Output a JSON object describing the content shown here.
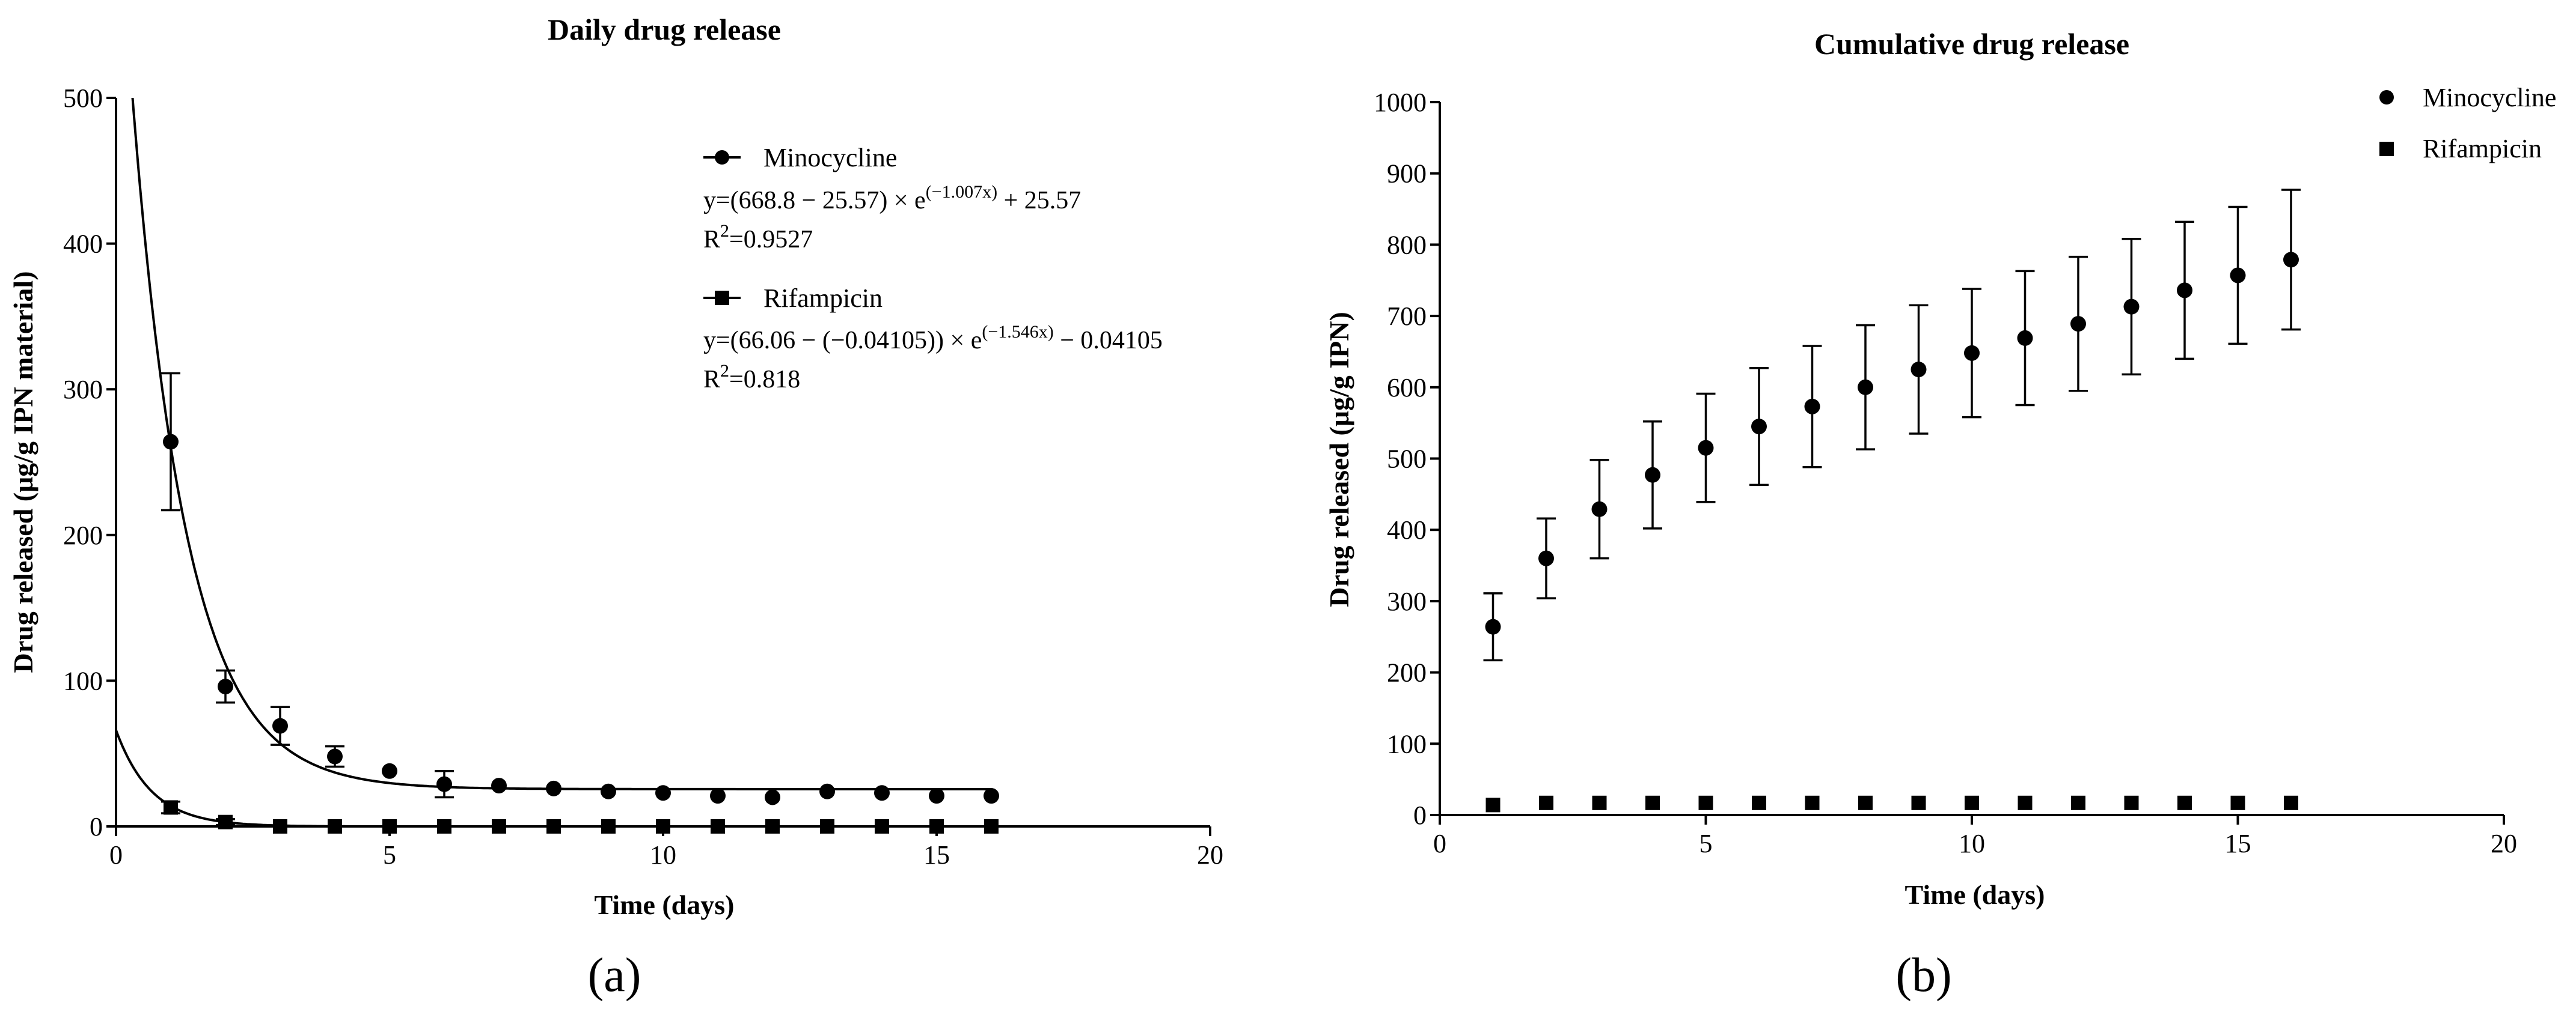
{
  "chart_data": [
    {
      "type": "scatter",
      "panel_label": "(a)",
      "title": "Daily drug release",
      "xlabel": "Time (days)",
      "ylabel": "Drug released (μg/g IPN material)",
      "xlim": [
        0,
        20
      ],
      "ylim": [
        0,
        500
      ],
      "xticks": [
        "0",
        "5",
        "10",
        "15",
        "20"
      ],
      "yticks": [
        "0",
        "100",
        "200",
        "300",
        "400",
        "500"
      ],
      "legend_position": "top-right",
      "series": [
        {
          "name": "Minocycline",
          "marker": "circle",
          "x": [
            1,
            2,
            3,
            4,
            5,
            6,
            7,
            8,
            9,
            10,
            11,
            12,
            13,
            14,
            15,
            16
          ],
          "y": [
            264,
            96,
            69,
            48,
            38,
            29,
            28,
            26,
            24,
            23,
            21,
            20,
            24,
            23,
            21,
            21
          ],
          "err": [
            47,
            11,
            13,
            7,
            0,
            9,
            0,
            0,
            0,
            0,
            0,
            0,
            0,
            0,
            0,
            0
          ],
          "fit": {
            "a": 668.8,
            "c": 25.57,
            "k": 1.007
          },
          "eq_main": "y=(668.8 − 25.57) × e",
          "eq_exp": "(−1.007x)",
          "eq_tail": " + 25.57",
          "r2_prefix": "R",
          "r2_sup": "2",
          "r2_value": "=0.9527"
        },
        {
          "name": "Rifampicin",
          "marker": "square",
          "x": [
            1,
            2,
            3,
            4,
            5,
            6,
            7,
            8,
            9,
            10,
            11,
            12,
            13,
            14,
            15,
            16
          ],
          "y": [
            13,
            3,
            0,
            0,
            0,
            0,
            0,
            0,
            0,
            0,
            0,
            0,
            0,
            0,
            0,
            0
          ],
          "err": [
            4,
            2,
            0,
            0,
            0,
            0,
            0,
            0,
            0,
            0,
            0,
            0,
            0,
            0,
            0,
            0
          ],
          "fit": {
            "a": 66.06,
            "c": -0.04105,
            "k": 1.546
          },
          "eq_main": "y=(66.06 − (−0.04105)) × e",
          "eq_exp": "(−1.546x)",
          "eq_tail": " − 0.04105",
          "r2_prefix": "R",
          "r2_sup": "2",
          "r2_value": "=0.818"
        }
      ]
    },
    {
      "type": "scatter",
      "panel_label": "(b)",
      "title": "Cumulative drug release",
      "xlabel": "Time (days)",
      "ylabel": "Drug released (μg/g IPN)",
      "xlim": [
        0,
        20
      ],
      "ylim": [
        0,
        1000
      ],
      "xticks": [
        "0",
        "5",
        "10",
        "15",
        "20"
      ],
      "yticks": [
        "0",
        "100",
        "200",
        "300",
        "400",
        "500",
        "600",
        "700",
        "800",
        "900",
        "1000"
      ],
      "legend_position": "top-right",
      "series": [
        {
          "name": "Minocycline",
          "marker": "circle",
          "x": [
            1,
            2,
            3,
            4,
            5,
            6,
            7,
            8,
            9,
            10,
            11,
            12,
            13,
            14,
            15,
            16
          ],
          "y": [
            264,
            360,
            429,
            477,
            515,
            545,
            573,
            600,
            625,
            648,
            669,
            689,
            713,
            736,
            757,
            779
          ],
          "err": [
            47,
            56,
            69,
            75,
            76,
            82,
            85,
            87,
            90,
            90,
            94,
            94,
            95,
            96,
            96,
            98
          ]
        },
        {
          "name": "Rifampicin",
          "marker": "square",
          "x": [
            1,
            2,
            3,
            4,
            5,
            6,
            7,
            8,
            9,
            10,
            11,
            12,
            13,
            14,
            15,
            16
          ],
          "y": [
            14,
            17,
            17,
            17,
            17,
            17,
            17,
            17,
            17,
            17,
            17,
            17,
            17,
            17,
            17,
            17
          ],
          "err": [
            0,
            0,
            0,
            0,
            0,
            0,
            0,
            0,
            0,
            0,
            0,
            0,
            0,
            0,
            0,
            0
          ]
        }
      ]
    }
  ]
}
